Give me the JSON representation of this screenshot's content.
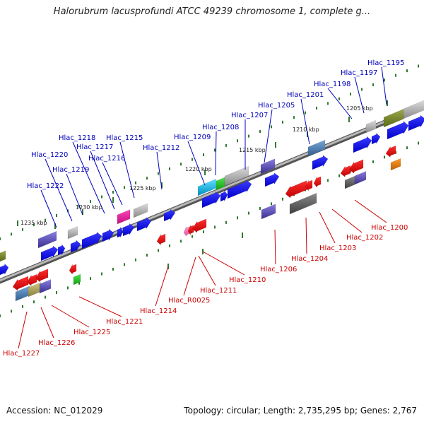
{
  "title": "Halorubrum lacusprofundi ATCC 49239 chromosome 1, complete g...",
  "footer": {
    "accession": "Accession: NC_012029",
    "summary": "Topology: circular; Length: 2,735,295 bp; Genes: 2,767"
  },
  "colors": {
    "forward_label": "#0000bb",
    "reverse_label": "#cc0000",
    "rna_label": "#ee88bb",
    "tick": "#2f7a2f",
    "backbone": "#888888"
  },
  "scale_labels": [
    "1205 kbp",
    "1210 kbp",
    "1215 kbp",
    "1220 kbp",
    "1225 kbp",
    "1230 kbp",
    "1235 kbp"
  ],
  "forward_genes": [
    "Hlac_1195",
    "Hlac_1197",
    "Hlac_1198",
    "Hlac_1201",
    "Hlac_1205",
    "Hlac_1207",
    "Hlac_1208",
    "Hlac_1209",
    "Hlac_1212",
    "Hlac_1215",
    "Hlac_1216",
    "Hlac_1217",
    "Hlac_1218",
    "Hlac_1219",
    "Hlac_1220",
    "Hlac_1222"
  ],
  "reverse_genes": [
    "Hlac_1200",
    "Hlac_1202",
    "Hlac_1203",
    "Hlac_1204",
    "Hlac_1206",
    "Hlac_1210",
    "Hlac_1211",
    "Hlac_R0025",
    "Hlac_1214",
    "Hlac_1221",
    "Hlac_1225",
    "Hlac_1226",
    "Hlac_1227"
  ]
}
